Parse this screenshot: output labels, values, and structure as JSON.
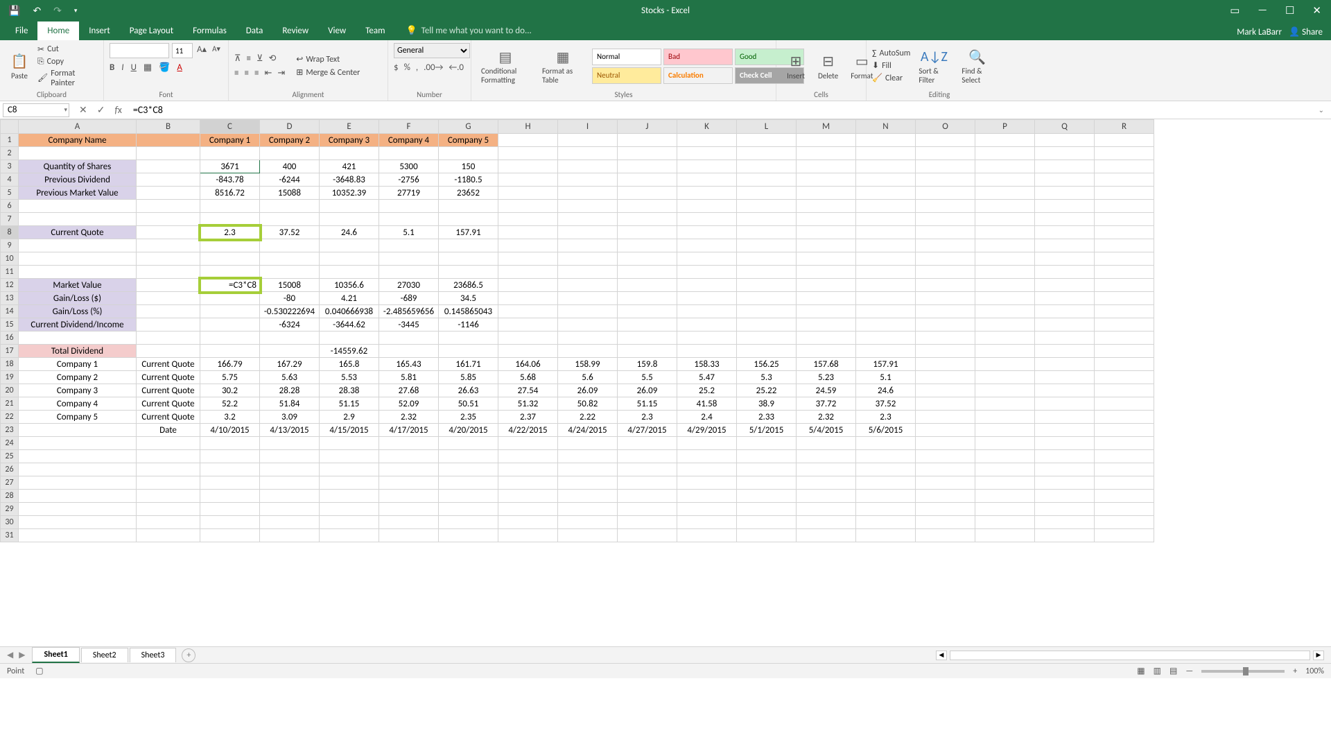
{
  "window": {
    "title": "Stocks - Excel",
    "user": "Mark LaBarr",
    "share": "Share"
  },
  "tabs": {
    "file": "File",
    "home": "Home",
    "insert": "Insert",
    "pagelayout": "Page Layout",
    "formulas": "Formulas",
    "data": "Data",
    "review": "Review",
    "view": "View",
    "team": "Team",
    "tell": "Tell me what you want to do..."
  },
  "ribbon": {
    "clipboard": {
      "paste": "Paste",
      "cut": "Cut",
      "copy": "Copy",
      "fp": "Format Painter",
      "label": "Clipboard"
    },
    "font": {
      "size": "11",
      "label": "Font"
    },
    "alignment": {
      "wrap": "Wrap Text",
      "merge": "Merge & Center",
      "label": "Alignment"
    },
    "number": {
      "fmt": "General",
      "label": "Number"
    },
    "styles": {
      "cf": "Conditional Formatting",
      "fat": "Format as Table",
      "g": [
        "Normal",
        "Bad",
        "Good",
        "Neutral",
        "Calculation",
        "Check Cell"
      ],
      "label": "Styles"
    },
    "cells": {
      "ins": "Insert",
      "del": "Delete",
      "fmt": "Format",
      "label": "Cells"
    },
    "editing": {
      "as": "AutoSum",
      "fill": "Fill",
      "clear": "Clear",
      "sf": "Sort & Filter",
      "fs": "Find & Select",
      "label": "Editing"
    }
  },
  "namebox": "C8",
  "formula": "=C3*C8",
  "cols": [
    "A",
    "B",
    "C",
    "D",
    "E",
    "F",
    "G",
    "H",
    "I",
    "J",
    "K",
    "L",
    "M",
    "N",
    "O",
    "P",
    "Q",
    "R"
  ],
  "sheet": {
    "r1": {
      "A": "Company Name",
      "C": "Company 1",
      "D": "Company 2",
      "E": "Company 3",
      "F": "Company 4",
      "G": "Company 5"
    },
    "r3": {
      "A": "Quantity of Shares",
      "C": "3671",
      "D": "400",
      "E": "421",
      "F": "5300",
      "G": "150"
    },
    "r4": {
      "A": "Previous Dividend",
      "C": "-843.78",
      "D": "-6244",
      "E": "-3648.83",
      "F": "-2756",
      "G": "-1180.5"
    },
    "r5": {
      "A": "Previous Market Value",
      "C": "8516.72",
      "D": "15088",
      "E": "10352.39",
      "F": "27719",
      "G": "23652"
    },
    "r8": {
      "A": "Current Quote",
      "C": "2.3",
      "D": "37.52",
      "E": "24.6",
      "F": "5.1",
      "G": "157.91"
    },
    "r12": {
      "A": "Market Value",
      "C": "=C3*C8",
      "D": "15008",
      "E": "10356.6",
      "F": "27030",
      "G": "23686.5"
    },
    "r13": {
      "A": "Gain/Loss ($)",
      "D": "-80",
      "E": "4.21",
      "F": "-689",
      "G": "34.5"
    },
    "r14": {
      "A": "Gain/Loss (%)",
      "D": "-0.530222694",
      "E": "0.040666938",
      "F": "-2.485659656",
      "G": "0.145865043"
    },
    "r15": {
      "A": "Current Dividend/Income",
      "D": "-6324",
      "E": "-3644.62",
      "F": "-3445",
      "G": "-1146"
    },
    "r17": {
      "A": "Total Dividend",
      "E": "-14559.62"
    },
    "r18": {
      "A": "Company 1",
      "B": "Current Quote",
      "C": "166.79",
      "D": "167.29",
      "E": "165.8",
      "F": "165.43",
      "G": "161.71",
      "H": "164.06",
      "I": "158.99",
      "J": "159.8",
      "K": "158.33",
      "L": "156.25",
      "M": "157.68",
      "N": "157.91"
    },
    "r19": {
      "A": "Company 2",
      "B": "Current Quote",
      "C": "5.75",
      "D": "5.63",
      "E": "5.53",
      "F": "5.81",
      "G": "5.85",
      "H": "5.68",
      "I": "5.6",
      "J": "5.5",
      "K": "5.47",
      "L": "5.3",
      "M": "5.23",
      "N": "5.1"
    },
    "r20": {
      "A": "Company 3",
      "B": "Current Quote",
      "C": "30.2",
      "D": "28.28",
      "E": "28.38",
      "F": "27.68",
      "G": "26.63",
      "H": "27.54",
      "I": "26.09",
      "J": "26.09",
      "K": "25.2",
      "L": "25.22",
      "M": "24.59",
      "N": "24.6"
    },
    "r21": {
      "A": "Company 4",
      "B": "Current Quote",
      "C": "52.2",
      "D": "51.84",
      "E": "51.15",
      "F": "52.09",
      "G": "50.51",
      "H": "51.32",
      "I": "50.82",
      "J": "51.15",
      "K": "41.58",
      "L": "38.9",
      "M": "37.72",
      "N": "37.52"
    },
    "r22": {
      "A": "Company 5",
      "B": "Current Quote",
      "C": "3.2",
      "D": "3.09",
      "E": "2.9",
      "F": "2.32",
      "G": "2.35",
      "H": "2.37",
      "I": "2.22",
      "J": "2.3",
      "K": "2.4",
      "L": "2.33",
      "M": "2.32",
      "N": "2.3"
    },
    "r23": {
      "B": "Date",
      "C": "4/10/2015",
      "D": "4/13/2015",
      "E": "4/15/2015",
      "F": "4/17/2015",
      "G": "4/20/2015",
      "H": "4/22/2015",
      "I": "4/24/2015",
      "J": "4/27/2015",
      "K": "4/29/2015",
      "L": "5/1/2015",
      "M": "5/4/2015",
      "N": "5/6/2015"
    }
  },
  "sheets": {
    "s1": "Sheet1",
    "s2": "Sheet2",
    "s3": "Sheet3"
  },
  "status": {
    "mode": "Point",
    "zoom": "100%"
  },
  "style_colors": {
    "normal": "#ffffff",
    "bad": "#ffc7ce",
    "good": "#c6efce",
    "neutral": "#ffeb9c",
    "calc": "#f2f2f2",
    "check": "#a5a5a5"
  }
}
